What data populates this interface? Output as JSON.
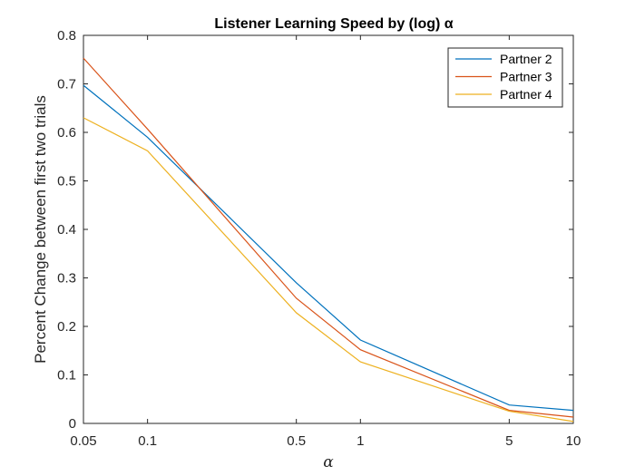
{
  "chart_data": {
    "type": "line",
    "title": "Listener Learning Speed by (log) α",
    "xlabel": "α",
    "ylabel": "Percent Change between first two trials",
    "x_scale": "log",
    "xlim": [
      0.05,
      10
    ],
    "ylim": [
      0,
      0.8
    ],
    "x_ticks": [
      0.05,
      0.1,
      0.5,
      1,
      5,
      10
    ],
    "x_tick_labels": [
      "0.05",
      "0.1",
      "0.5",
      "1",
      "5",
      "10"
    ],
    "y_ticks": [
      0,
      0.1,
      0.2,
      0.3,
      0.4,
      0.5,
      0.6,
      0.7,
      0.8
    ],
    "y_tick_labels": [
      "0",
      "0.1",
      "0.2",
      "0.3",
      "0.4",
      "0.5",
      "0.6",
      "0.7",
      "0.8"
    ],
    "x": [
      0.05,
      0.1,
      0.5,
      1,
      5,
      10
    ],
    "grid": false,
    "legend_position": "top-right",
    "series": [
      {
        "name": "Partner 2",
        "color": "#0072BD",
        "values": [
          0.697,
          0.59,
          0.29,
          0.172,
          0.038,
          0.027
        ]
      },
      {
        "name": "Partner 3",
        "color": "#D95319",
        "values": [
          0.753,
          0.607,
          0.258,
          0.152,
          0.027,
          0.013
        ]
      },
      {
        "name": "Partner 4",
        "color": "#EDB120",
        "values": [
          0.63,
          0.562,
          0.228,
          0.127,
          0.025,
          0.004
        ]
      }
    ]
  }
}
